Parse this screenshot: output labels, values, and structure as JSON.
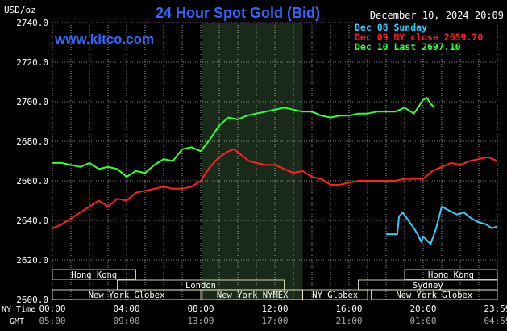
{
  "header": {
    "units": "USD/oz",
    "title": "24 Hour Spot Gold (Bid)",
    "timestamp": "December 10, 2024 20:09",
    "watermark": "www.kitco.com"
  },
  "legend": [
    {
      "label": "Dec 08 Sunday",
      "color": "#33ccff"
    },
    {
      "label": "Dec 09 NY close 2659.70",
      "color": "#ff2020"
    },
    {
      "label": "Dec 10 Last 2697.10",
      "color": "#33ff33"
    }
  ],
  "sessions": [
    {
      "label": "Hong Kong",
      "start": 0,
      "end": 4.5,
      "row": 1
    },
    {
      "label": "Hong Kong",
      "start": 19,
      "end": 24,
      "row": 1
    },
    {
      "label": "London",
      "start": 3.5,
      "end": 12.5,
      "row": 2
    },
    {
      "label": "Sydney",
      "start": 16.5,
      "end": 24,
      "row": 2
    },
    {
      "label": "New York Globex",
      "start": 0,
      "end": 8,
      "row": 3
    },
    {
      "label": "New York NYMEX",
      "start": 8.08,
      "end": 13.5,
      "row": 3
    },
    {
      "label": "NY Globex",
      "start": 13.5,
      "end": 17,
      "row": 3
    },
    {
      "label": "New York Globex",
      "start": 17.2,
      "end": 24,
      "row": 3
    }
  ],
  "axis_labels": {
    "ny_time": "NY Time",
    "gmt": "GMT"
  },
  "colors": {
    "background": "#000000",
    "grid": "#ffffff",
    "title": "#3366ff",
    "text": "#ffffff",
    "nymex_shade": "#1a2a1a",
    "session_box": "#ffffcc"
  },
  "chart_data": {
    "type": "line",
    "title": "24 Hour Spot Gold (Bid)",
    "ylabel": "USD/oz",
    "ylim": [
      2600,
      2740
    ],
    "xlim": [
      0,
      24
    ],
    "grid": true,
    "yticks": [
      2600,
      2620,
      2640,
      2660,
      2680,
      2700,
      2720,
      2740
    ],
    "ytick_labels": [
      "2600.0",
      "2620.0",
      "2640.0",
      "2660.0",
      "2680.0",
      "2700.0",
      "2720.0",
      "2740.0"
    ],
    "xticks": [
      0,
      4,
      8,
      12,
      16,
      20,
      24
    ],
    "xtick_labels_ny": [
      "00:00",
      "04:00",
      "08:00",
      "12:00",
      "16:00",
      "20:00",
      "23:59"
    ],
    "xtick_labels_gmt": [
      "05:00",
      "09:00",
      "13:00",
      "17:00",
      "21:00",
      "01:00",
      "04:59"
    ],
    "series": [
      {
        "name": "Dec 08 Sunday",
        "color": "#33ccff",
        "x": [
          18.0,
          18.6,
          18.7,
          18.9,
          19.2,
          19.5,
          19.7,
          19.9,
          20.0,
          20.2,
          20.4,
          20.7,
          21.0,
          21.4,
          21.8,
          22.2,
          22.6,
          23.0,
          23.4,
          23.7,
          24.0
        ],
        "y": [
          2633,
          2633,
          2642,
          2644,
          2640,
          2636,
          2633,
          2629,
          2632,
          2630,
          2628,
          2636,
          2647,
          2645,
          2643,
          2644,
          2641,
          2639,
          2638,
          2636,
          2637
        ]
      },
      {
        "name": "Dec 09 NY close 2659.70",
        "color": "#ff2020",
        "x": [
          0,
          0.5,
          1.0,
          1.5,
          2.0,
          2.5,
          3.0,
          3.5,
          4.0,
          4.5,
          5.0,
          5.5,
          6.0,
          6.5,
          7.0,
          7.5,
          8.0,
          8.5,
          9.0,
          9.5,
          9.8,
          10.2,
          10.6,
          11.0,
          11.5,
          12.0,
          12.5,
          13.0,
          13.5,
          14.0,
          14.5,
          15.0,
          15.5,
          16.0,
          16.5,
          17.0,
          17.5,
          18.0,
          18.5,
          19.0,
          19.5,
          20.0,
          20.5,
          21.0,
          21.5,
          22.0,
          22.5,
          23.0,
          23.5,
          24.0
        ],
        "y": [
          2636,
          2638,
          2641,
          2644,
          2647,
          2650,
          2647,
          2651,
          2650,
          2654,
          2655,
          2656,
          2657,
          2656,
          2656,
          2657,
          2660,
          2667,
          2672,
          2675,
          2676,
          2673,
          2670,
          2669,
          2668,
          2668,
          2666,
          2664,
          2665,
          2662,
          2661,
          2658,
          2658,
          2659,
          2660,
          2660,
          2660,
          2660,
          2660,
          2661,
          2661,
          2661,
          2665,
          2667,
          2669,
          2668,
          2670,
          2671,
          2672,
          2670
        ]
      },
      {
        "name": "Dec 10 Last 2697.10",
        "color": "#33ff33",
        "x": [
          0,
          0.5,
          1.0,
          1.5,
          2.0,
          2.5,
          3.0,
          3.5,
          4.0,
          4.5,
          5.0,
          5.5,
          6.0,
          6.5,
          7.0,
          7.5,
          8.0,
          8.5,
          9.0,
          9.5,
          10.0,
          10.5,
          11.0,
          11.5,
          12.0,
          12.5,
          13.0,
          13.5,
          14.0,
          14.5,
          15.0,
          15.5,
          16.0,
          16.5,
          17.0,
          17.5,
          18.0,
          18.5,
          19.0,
          19.5,
          20.0,
          20.2,
          20.4,
          20.6
        ],
        "y": [
          2669,
          2669,
          2668,
          2667,
          2669,
          2666,
          2667,
          2666,
          2662,
          2665,
          2664,
          2668,
          2671,
          2670,
          2676,
          2677,
          2675,
          2681,
          2688,
          2692,
          2691,
          2693,
          2694,
          2695,
          2696,
          2697,
          2696,
          2695,
          2695,
          2693,
          2692,
          2693,
          2693,
          2694,
          2694,
          2695,
          2695,
          2695,
          2697,
          2694,
          2701,
          2702,
          2699,
          2697
        ]
      }
    ]
  }
}
